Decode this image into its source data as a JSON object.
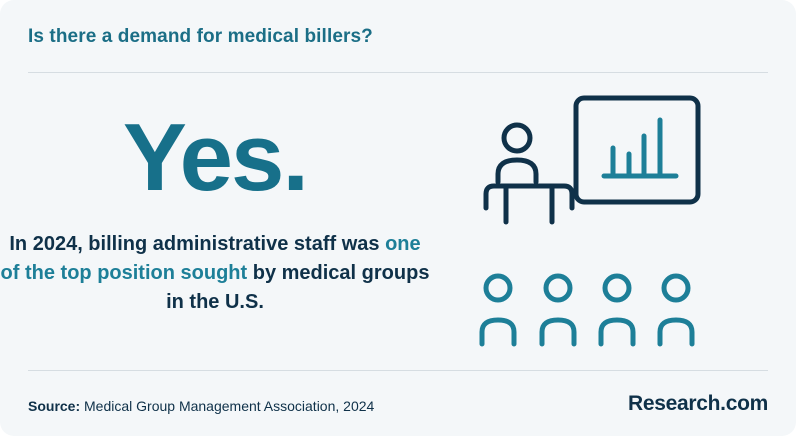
{
  "header": {
    "title": "Is there a demand for medical billers?"
  },
  "main": {
    "answer": "Yes.",
    "statement": {
      "before": "In 2024,  billing administrative staff was",
      "highlight": "one of the top position sought",
      "after": "by medical groups in the U.S."
    }
  },
  "illustration": {
    "icon": "presenter-with-chart-and-audience-icon",
    "colors": {
      "dark": "#0f3149",
      "accent": "#1d7f98"
    }
  },
  "footer": {
    "source_label": "Source:",
    "source_text": "Medical Group Management Association, 2024",
    "brand": "Research.com"
  },
  "colors": {
    "title": "#1b6e86",
    "answer": "#17708a",
    "text": "#0f3149",
    "background": "#f4f7f9"
  }
}
